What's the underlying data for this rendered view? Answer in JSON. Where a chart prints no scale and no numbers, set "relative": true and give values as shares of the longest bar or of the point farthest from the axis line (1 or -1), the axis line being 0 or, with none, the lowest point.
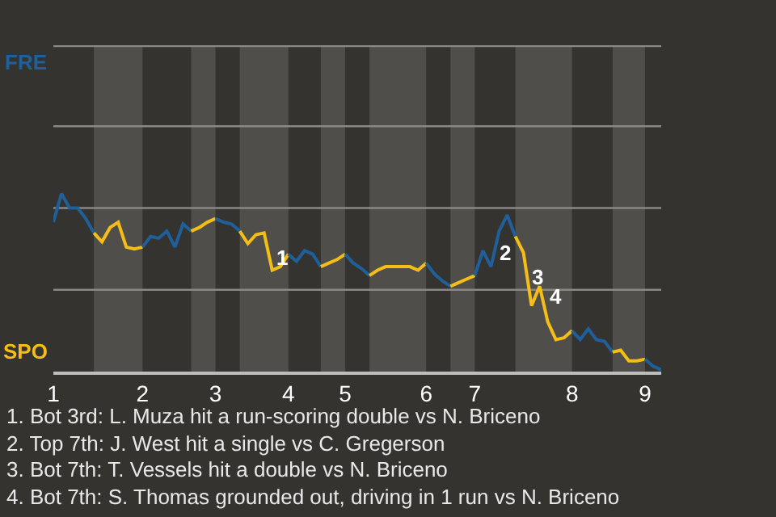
{
  "chart_data": {
    "type": "line",
    "relative": true,
    "categories": [
      "1",
      null,
      null,
      null,
      null,
      null,
      null,
      null,
      null,
      null,
      null,
      "2",
      null,
      null,
      null,
      null,
      null,
      null,
      null,
      null,
      "3",
      null,
      null,
      null,
      null,
      null,
      null,
      null,
      null,
      "4",
      null,
      null,
      null,
      null,
      null,
      null,
      "5",
      null,
      null,
      null,
      null,
      null,
      null,
      null,
      null,
      null,
      "6",
      null,
      null,
      null,
      null,
      null,
      "7",
      null,
      null,
      null,
      null,
      null,
      null,
      null,
      null,
      null,
      null,
      null,
      "8",
      null,
      null,
      null,
      null,
      null,
      null,
      null,
      null,
      "9",
      null,
      null
    ],
    "marker": "none",
    "line_style": "solid",
    "series": [
      {
        "color": "#1f5f9a",
        "values": [
          0.84,
          1,
          0.92,
          0.92,
          0.86,
          0.78,
          null,
          null,
          null,
          null,
          null,
          null,
          null,
          null,
          null,
          null,
          null,
          null,
          null,
          null,
          null,
          null,
          null,
          null,
          null,
          null,
          null,
          null,
          null,
          null,
          null,
          null,
          null,
          null,
          null,
          null,
          null,
          null,
          null,
          null,
          null,
          null,
          null,
          null,
          null,
          null,
          null,
          null,
          null,
          null,
          null,
          null,
          null,
          null,
          null,
          null,
          null,
          null,
          null,
          null,
          null,
          null,
          null,
          null,
          null,
          null,
          null,
          null,
          null,
          null,
          null,
          null,
          null,
          null,
          null,
          null
        ]
      },
      {
        "color": "#f5be14",
        "values": [
          null,
          null,
          null,
          null,
          null,
          0.78,
          0.73,
          0.81,
          0.84,
          0.7,
          0.69,
          0.7,
          null,
          null,
          null,
          null,
          null,
          null,
          null,
          null,
          null,
          null,
          null,
          null,
          null,
          null,
          null,
          null,
          null,
          null,
          null,
          null,
          null,
          null,
          null,
          null,
          null,
          null,
          null,
          null,
          null,
          null,
          null,
          null,
          null,
          null,
          null,
          null,
          null,
          null,
          null,
          null,
          null,
          null,
          null,
          null,
          null,
          null,
          null,
          null,
          null,
          null,
          null,
          null,
          null,
          null,
          null,
          null,
          null,
          null,
          null,
          null,
          null,
          null,
          null,
          null
        ]
      },
      {
        "color": "#1f5f9a",
        "values": [
          null,
          null,
          null,
          null,
          null,
          null,
          null,
          null,
          null,
          null,
          null,
          0.7,
          0.76,
          0.75,
          0.79,
          0.7,
          0.83,
          0.79,
          null,
          null,
          null,
          null,
          null,
          null,
          null,
          null,
          null,
          null,
          null,
          null,
          null,
          null,
          null,
          null,
          null,
          null,
          null,
          null,
          null,
          null,
          null,
          null,
          null,
          null,
          null,
          null,
          null,
          null,
          null,
          null,
          null,
          null,
          null,
          null,
          null,
          null,
          null,
          null,
          null,
          null,
          null,
          null,
          null,
          null,
          null,
          null,
          null,
          null,
          null,
          null,
          null,
          null,
          null,
          null,
          null,
          null
        ]
      },
      {
        "color": "#f5be14",
        "values": [
          null,
          null,
          null,
          null,
          null,
          null,
          null,
          null,
          null,
          null,
          null,
          null,
          null,
          null,
          null,
          null,
          null,
          0.79,
          0.81,
          0.84,
          0.86,
          null,
          null,
          null,
          null,
          null,
          null,
          null,
          null,
          null,
          null,
          null,
          null,
          null,
          null,
          null,
          null,
          null,
          null,
          null,
          null,
          null,
          null,
          null,
          null,
          null,
          null,
          null,
          null,
          null,
          null,
          null,
          null,
          null,
          null,
          null,
          null,
          null,
          null,
          null,
          null,
          null,
          null,
          null,
          null,
          null,
          null,
          null,
          null,
          null,
          null,
          null,
          null,
          null,
          null,
          null
        ]
      },
      {
        "color": "#1f5f9a",
        "values": [
          null,
          null,
          null,
          null,
          null,
          null,
          null,
          null,
          null,
          null,
          null,
          null,
          null,
          null,
          null,
          null,
          null,
          null,
          null,
          null,
          0.86,
          0.84,
          0.83,
          0.79,
          null,
          null,
          null,
          null,
          null,
          null,
          null,
          null,
          null,
          null,
          null,
          null,
          null,
          null,
          null,
          null,
          null,
          null,
          null,
          null,
          null,
          null,
          null,
          null,
          null,
          null,
          null,
          null,
          null,
          null,
          null,
          null,
          null,
          null,
          null,
          null,
          null,
          null,
          null,
          null,
          null,
          null,
          null,
          null,
          null,
          null,
          null,
          null,
          null,
          null,
          null,
          null
        ]
      },
      {
        "color": "#f5be14",
        "values": [
          null,
          null,
          null,
          null,
          null,
          null,
          null,
          null,
          null,
          null,
          null,
          null,
          null,
          null,
          null,
          null,
          null,
          null,
          null,
          null,
          null,
          null,
          null,
          0.79,
          0.72,
          0.77,
          0.78,
          0.57,
          0.59,
          0.66,
          null,
          null,
          null,
          null,
          null,
          null,
          null,
          null,
          null,
          null,
          null,
          null,
          null,
          null,
          null,
          null,
          null,
          null,
          null,
          null,
          null,
          null,
          null,
          null,
          null,
          null,
          null,
          null,
          null,
          null,
          null,
          null,
          null,
          null,
          null,
          null,
          null,
          null,
          null,
          null,
          null,
          null,
          null,
          null,
          null,
          null
        ]
      },
      {
        "color": "#1f5f9a",
        "values": [
          null,
          null,
          null,
          null,
          null,
          null,
          null,
          null,
          null,
          null,
          null,
          null,
          null,
          null,
          null,
          null,
          null,
          null,
          null,
          null,
          null,
          null,
          null,
          null,
          null,
          null,
          null,
          null,
          null,
          0.66,
          0.62,
          0.68,
          0.66,
          0.59,
          null,
          null,
          null,
          null,
          null,
          null,
          null,
          null,
          null,
          null,
          null,
          null,
          null,
          null,
          null,
          null,
          null,
          null,
          null,
          null,
          null,
          null,
          null,
          null,
          null,
          null,
          null,
          null,
          null,
          null,
          null,
          null,
          null,
          null,
          null,
          null,
          null,
          null,
          null,
          null,
          null,
          null
        ]
      },
      {
        "color": "#f5be14",
        "values": [
          null,
          null,
          null,
          null,
          null,
          null,
          null,
          null,
          null,
          null,
          null,
          null,
          null,
          null,
          null,
          null,
          null,
          null,
          null,
          null,
          null,
          null,
          null,
          null,
          null,
          null,
          null,
          null,
          null,
          null,
          null,
          null,
          null,
          0.59,
          0.61,
          0.63,
          0.66,
          null,
          null,
          null,
          null,
          null,
          null,
          null,
          null,
          null,
          null,
          null,
          null,
          null,
          null,
          null,
          null,
          null,
          null,
          null,
          null,
          null,
          null,
          null,
          null,
          null,
          null,
          null,
          null,
          null,
          null,
          null,
          null,
          null,
          null,
          null,
          null,
          null,
          null,
          null
        ]
      },
      {
        "color": "#1f5f9a",
        "values": [
          null,
          null,
          null,
          null,
          null,
          null,
          null,
          null,
          null,
          null,
          null,
          null,
          null,
          null,
          null,
          null,
          null,
          null,
          null,
          null,
          null,
          null,
          null,
          null,
          null,
          null,
          null,
          null,
          null,
          null,
          null,
          null,
          null,
          null,
          null,
          null,
          0.66,
          0.61,
          0.58,
          0.54,
          null,
          null,
          null,
          null,
          null,
          null,
          null,
          null,
          null,
          null,
          null,
          null,
          null,
          null,
          null,
          null,
          null,
          null,
          null,
          null,
          null,
          null,
          null,
          null,
          null,
          null,
          null,
          null,
          null,
          null,
          null,
          null,
          null,
          null,
          null,
          null
        ]
      },
      {
        "color": "#f5be14",
        "values": [
          null,
          null,
          null,
          null,
          null,
          null,
          null,
          null,
          null,
          null,
          null,
          null,
          null,
          null,
          null,
          null,
          null,
          null,
          null,
          null,
          null,
          null,
          null,
          null,
          null,
          null,
          null,
          null,
          null,
          null,
          null,
          null,
          null,
          null,
          null,
          null,
          null,
          null,
          null,
          0.54,
          0.57,
          0.59,
          0.59,
          0.59,
          0.59,
          0.57,
          0.61,
          null,
          null,
          null,
          null,
          null,
          null,
          null,
          null,
          null,
          null,
          null,
          null,
          null,
          null,
          null,
          null,
          null,
          null,
          null,
          null,
          null,
          null,
          null,
          null,
          null,
          null,
          null,
          null,
          null
        ]
      },
      {
        "color": "#1f5f9a",
        "values": [
          null,
          null,
          null,
          null,
          null,
          null,
          null,
          null,
          null,
          null,
          null,
          null,
          null,
          null,
          null,
          null,
          null,
          null,
          null,
          null,
          null,
          null,
          null,
          null,
          null,
          null,
          null,
          null,
          null,
          null,
          null,
          null,
          null,
          null,
          null,
          null,
          null,
          null,
          null,
          null,
          null,
          null,
          null,
          null,
          null,
          null,
          0.61,
          0.55,
          0.51,
          0.48,
          null,
          null,
          null,
          null,
          null,
          null,
          null,
          null,
          null,
          null,
          null,
          null,
          null,
          null,
          null,
          null,
          null,
          null,
          null,
          null,
          null,
          null,
          null,
          null,
          null,
          null
        ]
      },
      {
        "color": "#f5be14",
        "values": [
          null,
          null,
          null,
          null,
          null,
          null,
          null,
          null,
          null,
          null,
          null,
          null,
          null,
          null,
          null,
          null,
          null,
          null,
          null,
          null,
          null,
          null,
          null,
          null,
          null,
          null,
          null,
          null,
          null,
          null,
          null,
          null,
          null,
          null,
          null,
          null,
          null,
          null,
          null,
          null,
          null,
          null,
          null,
          null,
          null,
          null,
          null,
          null,
          null,
          0.48,
          0.5,
          0.52,
          0.54,
          null,
          null,
          null,
          null,
          null,
          null,
          null,
          null,
          null,
          null,
          null,
          null,
          null,
          null,
          null,
          null,
          null,
          null,
          null,
          null,
          null,
          null,
          null
        ]
      },
      {
        "color": "#1f5f9a",
        "values": [
          null,
          null,
          null,
          null,
          null,
          null,
          null,
          null,
          null,
          null,
          null,
          null,
          null,
          null,
          null,
          null,
          null,
          null,
          null,
          null,
          null,
          null,
          null,
          null,
          null,
          null,
          null,
          null,
          null,
          null,
          null,
          null,
          null,
          null,
          null,
          null,
          null,
          null,
          null,
          null,
          null,
          null,
          null,
          null,
          null,
          null,
          null,
          null,
          null,
          null,
          null,
          null,
          0.54,
          0.68,
          0.59,
          0.79,
          0.88,
          0.76,
          null,
          null,
          null,
          null,
          null,
          null,
          null,
          null,
          null,
          null,
          null,
          null,
          null,
          null,
          null,
          null,
          null,
          null
        ]
      },
      {
        "color": "#f5be14",
        "values": [
          null,
          null,
          null,
          null,
          null,
          null,
          null,
          null,
          null,
          null,
          null,
          null,
          null,
          null,
          null,
          null,
          null,
          null,
          null,
          null,
          null,
          null,
          null,
          null,
          null,
          null,
          null,
          null,
          null,
          null,
          null,
          null,
          null,
          null,
          null,
          null,
          null,
          null,
          null,
          null,
          null,
          null,
          null,
          null,
          null,
          null,
          null,
          null,
          null,
          null,
          null,
          null,
          null,
          null,
          null,
          null,
          null,
          0.76,
          0.67,
          0.37,
          0.48,
          0.28,
          0.18,
          0.19,
          0.23,
          null,
          null,
          null,
          null,
          null,
          null,
          null,
          null,
          null,
          null,
          null
        ]
      },
      {
        "color": "#1f5f9a",
        "values": [
          null,
          null,
          null,
          null,
          null,
          null,
          null,
          null,
          null,
          null,
          null,
          null,
          null,
          null,
          null,
          null,
          null,
          null,
          null,
          null,
          null,
          null,
          null,
          null,
          null,
          null,
          null,
          null,
          null,
          null,
          null,
          null,
          null,
          null,
          null,
          null,
          null,
          null,
          null,
          null,
          null,
          null,
          null,
          null,
          null,
          null,
          null,
          null,
          null,
          null,
          null,
          null,
          null,
          null,
          null,
          null,
          null,
          null,
          null,
          null,
          null,
          null,
          null,
          null,
          0.23,
          0.18,
          0.24,
          0.18,
          0.17,
          0.11,
          null,
          null,
          null,
          null,
          null,
          null
        ]
      },
      {
        "color": "#f5be14",
        "values": [
          null,
          null,
          null,
          null,
          null,
          null,
          null,
          null,
          null,
          null,
          null,
          null,
          null,
          null,
          null,
          null,
          null,
          null,
          null,
          null,
          null,
          null,
          null,
          null,
          null,
          null,
          null,
          null,
          null,
          null,
          null,
          null,
          null,
          null,
          null,
          null,
          null,
          null,
          null,
          null,
          null,
          null,
          null,
          null,
          null,
          null,
          null,
          null,
          null,
          null,
          null,
          null,
          null,
          null,
          null,
          null,
          null,
          null,
          null,
          null,
          null,
          null,
          null,
          null,
          null,
          null,
          null,
          null,
          null,
          0.11,
          0.12,
          0.06,
          0.06,
          0.07,
          null,
          null
        ]
      },
      {
        "color": "#1f5f9a",
        "values": [
          null,
          null,
          null,
          null,
          null,
          null,
          null,
          null,
          null,
          null,
          null,
          null,
          null,
          null,
          null,
          null,
          null,
          null,
          null,
          null,
          null,
          null,
          null,
          null,
          null,
          null,
          null,
          null,
          null,
          null,
          null,
          null,
          null,
          null,
          null,
          null,
          null,
          null,
          null,
          null,
          null,
          null,
          null,
          null,
          null,
          null,
          null,
          null,
          null,
          null,
          null,
          null,
          null,
          null,
          null,
          null,
          null,
          null,
          null,
          null,
          null,
          null,
          null,
          null,
          null,
          null,
          null,
          null,
          null,
          null,
          null,
          null,
          null,
          0.07,
          0.03,
          0.01
        ]
      }
    ],
    "ref_lines": [
      {
        "axis": "y",
        "value": 0.46,
        "color": "#8a8886"
      },
      {
        "axis": "y",
        "value": 0.92,
        "color": "#8a8886"
      },
      {
        "axis": "y",
        "value": 1.38,
        "color": "#8a8886"
      },
      {
        "axis": "y",
        "value": 1.83,
        "color": "#8a8886"
      }
    ],
    "annotations": [
      "FRE",
      "SPO",
      "1",
      "2",
      "3",
      "4",
      "1. Bot 3rd: L. Muza hit a run-scoring double vs N. Briceno",
      "2. Top 7th: J. West hit a single vs C. Gregerson",
      "3. Bot 7th: T. Vessels hit a double vs N. Briceno",
      "4. Bot 7th: S. Thomas grounded out, driving in 1 run vs N. Briceno"
    ]
  }
}
